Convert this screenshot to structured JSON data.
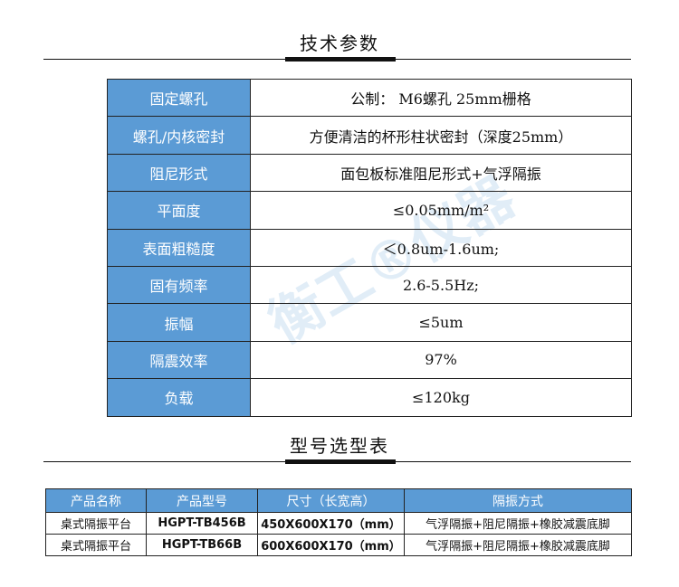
{
  "spec_section": {
    "title": "技术参数",
    "rows": [
      {
        "key": "固定螺孔",
        "value": "公制： M6螺孔 25mm栅格"
      },
      {
        "key": "螺孔/内核密封",
        "value": "方便清洁的杯形柱状密封（深度25mm）"
      },
      {
        "key": "阻尼形式",
        "value": "面包板标准阻尼形式+气浮隔振"
      },
      {
        "key": "平面度",
        "value": "≤0.05mm/m²"
      },
      {
        "key": "表面粗糙度",
        "value": "＜0.8um-1.6um;"
      },
      {
        "key": "固有频率",
        "value": "2.6-5.5Hz;"
      },
      {
        "key": "振幅",
        "value": "≤5um"
      },
      {
        "key": "隔震效率",
        "value": "97%"
      },
      {
        "key": "负载",
        "value": "≤120kg"
      }
    ]
  },
  "model_section": {
    "title": "型号选型表",
    "headers": [
      "产品名称",
      "产品型号",
      "尺寸（长宽高）",
      "隔振方式"
    ],
    "rows": [
      [
        "桌式隔振平台",
        "HGPT-TB456B",
        "450X600X170（mm）",
        "气浮隔振+阻尼隔振+橡胶减震底脚"
      ],
      [
        "桌式隔振平台",
        "HGPT-TB66B",
        "600X600X170（mm）",
        "气浮隔振+阻尼隔振+橡胶减震底脚"
      ]
    ]
  },
  "watermark": "衡工®仪器",
  "colors": {
    "header_blue": "#5b9bd5"
  }
}
